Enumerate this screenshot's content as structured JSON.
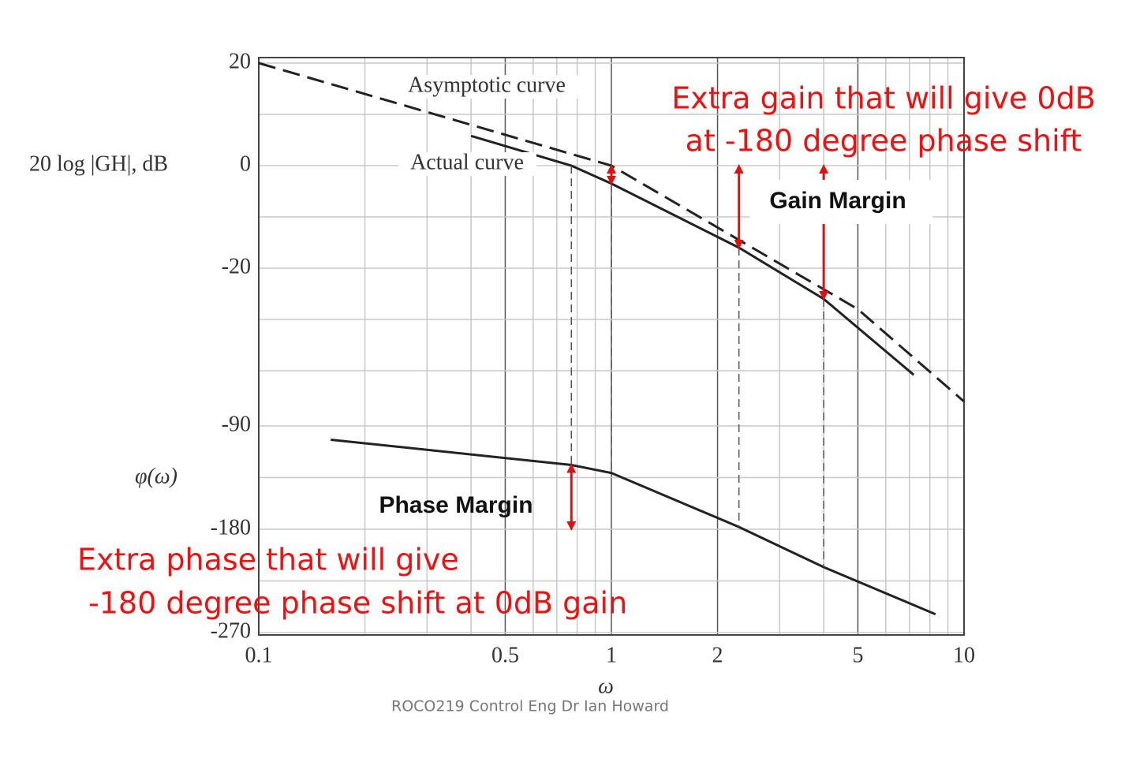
{
  "chart_data": [
    {
      "type": "line",
      "ylabel": "20 log |GH|, dB",
      "xscale": "log",
      "xlim": [
        0.1,
        10
      ],
      "ylim": [
        -50,
        20
      ],
      "yticks": [
        20,
        0,
        -20
      ],
      "yminor": [
        10,
        -10,
        -30,
        -40
      ],
      "series": [
        {
          "name": "Asymptotic curve",
          "color": "#222222",
          "dash": true,
          "x": [
            0.1,
            1,
            5,
            10
          ],
          "values": [
            20,
            0,
            -28,
            -46
          ]
        },
        {
          "name": "Actual curve",
          "color": "#222222",
          "dash": false,
          "x": [
            0.4,
            0.77,
            1,
            2.3,
            4,
            7.2
          ],
          "values": [
            5.8,
            0,
            -3.5,
            -16,
            -26,
            -40.8
          ]
        }
      ],
      "annotations": {
        "gain_margin": "Gain Margin",
        "gain_note": [
          "Extra gain that will give 0dB",
          "at -180 degree phase shift"
        ]
      }
    },
    {
      "type": "line",
      "ylabel": "φ(ω)",
      "xlabel": "ω",
      "xscale": "log",
      "xlim": [
        0.1,
        10
      ],
      "xticks": [
        0.1,
        0.5,
        1,
        2,
        5,
        10
      ],
      "xminor": [
        0.2,
        0.3,
        0.4,
        0.6,
        0.7,
        0.8,
        0.9,
        3,
        4,
        6,
        7,
        8,
        9
      ],
      "ylim": [
        -270,
        -90
      ],
      "yticks": [
        -90,
        -180,
        -270
      ],
      "yminor": [
        -135,
        -225
      ],
      "series": [
        {
          "color": "#222222",
          "x": [
            0.16,
            0.77,
            1,
            2.3,
            4,
            8.3
          ],
          "values": [
            -102,
            -124,
            -131,
            -178,
            -213,
            -254
          ]
        }
      ],
      "annotations": {
        "phase_margin": "Phase Margin",
        "phase_note": [
          "Extra phase that will give",
          "-180 degree phase shift at 0dB gain"
        ]
      }
    }
  ],
  "footer": "ROCO219 Control Eng Dr Ian Howard"
}
